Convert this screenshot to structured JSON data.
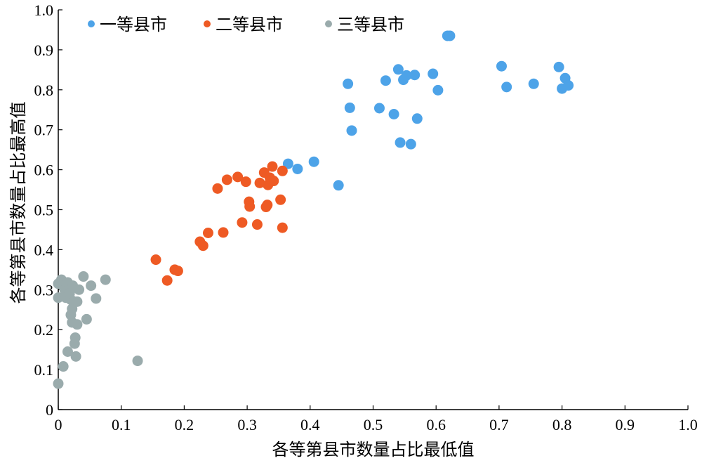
{
  "chart_data": {
    "type": "scatter",
    "xlabel": "各等第县市数量占比最低值",
    "ylabel": "各等第县市数量占比最高值",
    "xlim": [
      0,
      1.0
    ],
    "ylim": [
      0,
      1.0
    ],
    "x_ticks": [
      "0",
      "0.1",
      "0.2",
      "0.3",
      "0.4",
      "0.5",
      "0.6",
      "0.7",
      "0.8",
      "0.9",
      "1.0"
    ],
    "y_ticks": [
      "0",
      "0.1",
      "0.2",
      "0.3",
      "0.4",
      "0.5",
      "0.6",
      "0.7",
      "0.8",
      "0.9",
      "1.0"
    ],
    "grid": false,
    "legend_position": "top-left",
    "series": [
      {
        "name": "一等县市",
        "color": "#4da3e8",
        "points": [
          [
            0.365,
            0.615
          ],
          [
            0.38,
            0.602
          ],
          [
            0.406,
            0.62
          ],
          [
            0.445,
            0.561
          ],
          [
            0.46,
            0.815
          ],
          [
            0.463,
            0.755
          ],
          [
            0.466,
            0.698
          ],
          [
            0.51,
            0.754
          ],
          [
            0.52,
            0.823
          ],
          [
            0.533,
            0.739
          ],
          [
            0.54,
            0.851
          ],
          [
            0.543,
            0.668
          ],
          [
            0.548,
            0.825
          ],
          [
            0.553,
            0.836
          ],
          [
            0.56,
            0.664
          ],
          [
            0.566,
            0.837
          ],
          [
            0.57,
            0.728
          ],
          [
            0.595,
            0.84
          ],
          [
            0.603,
            0.799
          ],
          [
            0.618,
            0.935
          ],
          [
            0.622,
            0.935
          ],
          [
            0.704,
            0.859
          ],
          [
            0.712,
            0.807
          ],
          [
            0.755,
            0.815
          ],
          [
            0.795,
            0.857
          ],
          [
            0.8,
            0.803
          ],
          [
            0.805,
            0.829
          ],
          [
            0.81,
            0.811
          ]
        ]
      },
      {
        "name": "二等县市",
        "color": "#ee5a24",
        "points": [
          [
            0.155,
            0.375
          ],
          [
            0.173,
            0.323
          ],
          [
            0.185,
            0.35
          ],
          [
            0.19,
            0.347
          ],
          [
            0.225,
            0.42
          ],
          [
            0.23,
            0.41
          ],
          [
            0.238,
            0.442
          ],
          [
            0.253,
            0.553
          ],
          [
            0.262,
            0.443
          ],
          [
            0.268,
            0.575
          ],
          [
            0.285,
            0.582
          ],
          [
            0.292,
            0.468
          ],
          [
            0.298,
            0.57
          ],
          [
            0.303,
            0.52
          ],
          [
            0.304,
            0.508
          ],
          [
            0.316,
            0.463
          ],
          [
            0.32,
            0.567
          ],
          [
            0.327,
            0.593
          ],
          [
            0.33,
            0.507
          ],
          [
            0.332,
            0.512
          ],
          [
            0.333,
            0.562
          ],
          [
            0.336,
            0.58
          ],
          [
            0.34,
            0.608
          ],
          [
            0.342,
            0.572
          ],
          [
            0.353,
            0.525
          ],
          [
            0.356,
            0.597
          ],
          [
            0.356,
            0.455
          ]
        ]
      },
      {
        "name": "三等县市",
        "color": "#9aabac",
        "points": [
          [
            0.0,
            0.065
          ],
          [
            0.0,
            0.28
          ],
          [
            0.0,
            0.315
          ],
          [
            0.005,
            0.325
          ],
          [
            0.008,
            0.108
          ],
          [
            0.01,
            0.3
          ],
          [
            0.012,
            0.28
          ],
          [
            0.015,
            0.318
          ],
          [
            0.015,
            0.145
          ],
          [
            0.018,
            0.29
          ],
          [
            0.02,
            0.275
          ],
          [
            0.02,
            0.237
          ],
          [
            0.022,
            0.218
          ],
          [
            0.022,
            0.252
          ],
          [
            0.023,
            0.31
          ],
          [
            0.025,
            0.27
          ],
          [
            0.026,
            0.165
          ],
          [
            0.027,
            0.18
          ],
          [
            0.028,
            0.133
          ],
          [
            0.03,
            0.27
          ],
          [
            0.03,
            0.213
          ],
          [
            0.033,
            0.3
          ],
          [
            0.04,
            0.333
          ],
          [
            0.045,
            0.226
          ],
          [
            0.052,
            0.31
          ],
          [
            0.06,
            0.278
          ],
          [
            0.075,
            0.325
          ],
          [
            0.126,
            0.122
          ]
        ]
      }
    ]
  }
}
